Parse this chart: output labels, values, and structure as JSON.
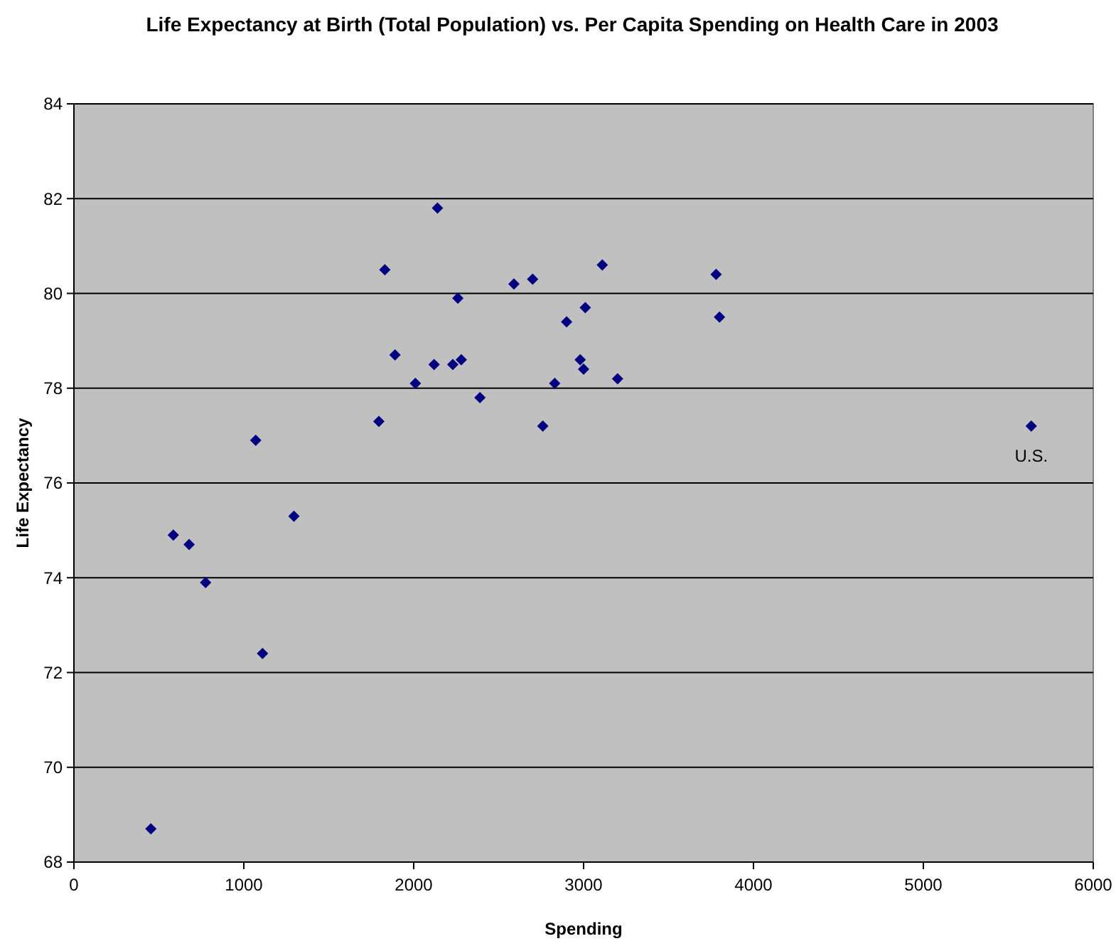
{
  "chart_data": {
    "type": "scatter",
    "title": "Life Expectancy at Birth (Total Population) vs. Per Capita Spending on Health Care in 2003",
    "xlabel": "Spending",
    "ylabel": "Life Expectancy",
    "x": [
      453,
      585,
      678,
      775,
      1070,
      1110,
      1295,
      1795,
      1830,
      1890,
      2010,
      2120,
      2140,
      2230,
      2260,
      2280,
      2390,
      2590,
      2700,
      2760,
      2830,
      2900,
      2980,
      3000,
      3010,
      3110,
      3200,
      3780,
      3800,
      5635
    ],
    "series": [
      {
        "color": "#000080",
        "values": [
          68.7,
          74.9,
          74.7,
          73.9,
          76.9,
          72.4,
          75.3,
          77.3,
          80.5,
          78.7,
          78.1,
          78.5,
          81.8,
          78.5,
          79.9,
          78.6,
          77.8,
          80.2,
          80.3,
          77.2,
          78.1,
          79.4,
          78.6,
          78.4,
          79.7,
          80.6,
          78.2,
          80.4,
          79.5,
          77.2
        ]
      }
    ],
    "xlim": [
      0,
      6000
    ],
    "xticks": [
      0,
      1000,
      2000,
      3000,
      4000,
      5000,
      6000
    ],
    "ylim": [
      68,
      84
    ],
    "yticks": [
      68,
      70,
      72,
      74,
      76,
      78,
      80,
      82,
      84
    ],
    "grid": "y",
    "marker": "diamond",
    "annotations": [
      {
        "text": "U.S.",
        "x": 5635,
        "y": 77.2
      }
    ]
  }
}
